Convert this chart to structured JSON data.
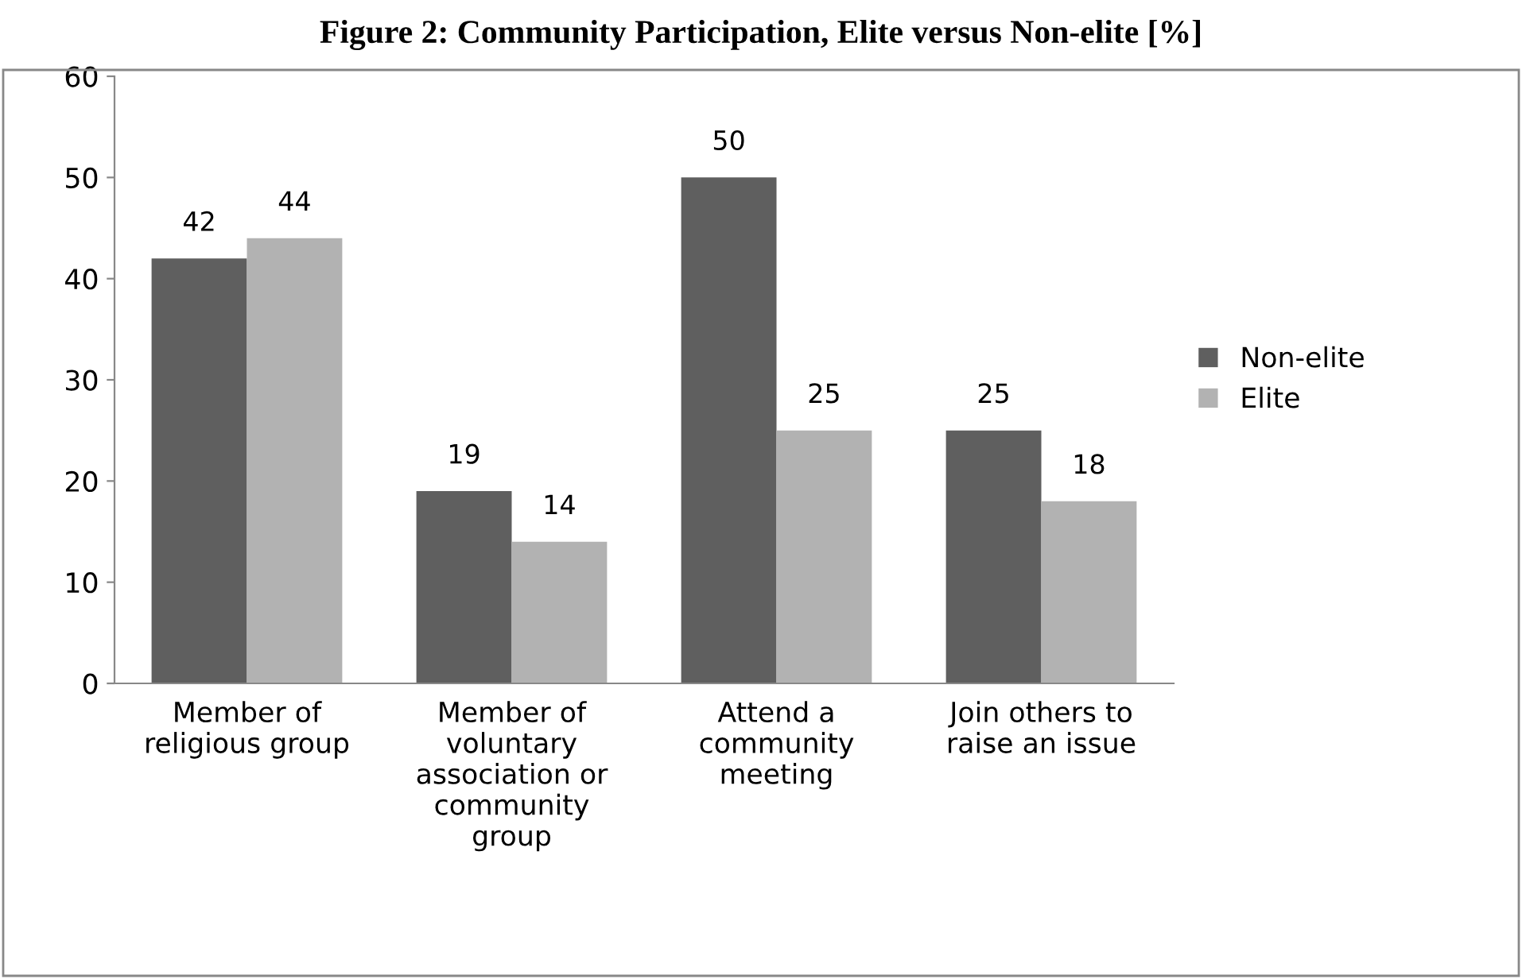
{
  "chart_data": {
    "type": "bar",
    "title": "Figure 2: Community Participation, Elite versus Non-elite [%]",
    "categories": [
      "Member of\nreligious group",
      "Member of\nvoluntary\nassociation or\ncommunity\ngroup",
      "Attend a\ncommunity\nmeeting",
      "Join others to\nraise an issue"
    ],
    "series": [
      {
        "name": "Non-elite",
        "color": "#5f5f5f",
        "values": [
          42,
          19,
          50,
          25
        ]
      },
      {
        "name": "Elite",
        "color": "#b2b2b2",
        "values": [
          44,
          14,
          25,
          18
        ]
      }
    ],
    "ylim": [
      0,
      60
    ],
    "yticks": [
      0,
      10,
      20,
      30,
      40,
      50,
      60
    ],
    "grid": false,
    "legend": "right",
    "data_labels": true
  }
}
